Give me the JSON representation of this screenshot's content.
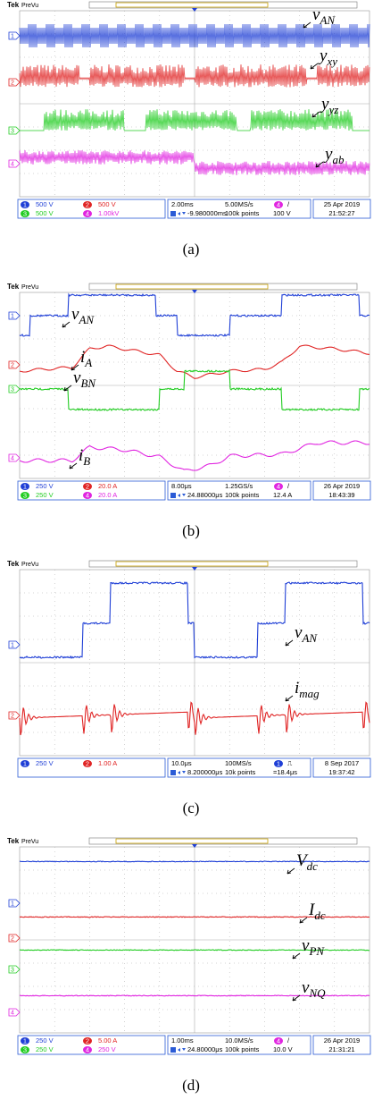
{
  "trace_colors": {
    "1": "#1f3fd6",
    "2": "#e02424",
    "3": "#22cc22",
    "4": "#e024e0"
  },
  "panels": [
    {
      "caption": "(a)",
      "header": {
        "brand": "Tek",
        "mode": "PreVu"
      },
      "labels": [
        {
          "base": "v",
          "sub": "AN"
        },
        {
          "base": "y",
          "sub": "xy"
        },
        {
          "base": "y",
          "sub": "yz"
        },
        {
          "base": "y",
          "sub": "ab"
        }
      ],
      "markers": [
        "1",
        "2",
        "3",
        "4"
      ],
      "status": {
        "channels": [
          {
            "num": "1",
            "scale": "500 V"
          },
          {
            "num": "2",
            "scale": "500 V"
          },
          {
            "num": "3",
            "scale": "500 V"
          },
          {
            "num": "4",
            "scale": "1.00kV"
          }
        ],
        "timebase": "2.00ms",
        "offset": "-9.980000ms",
        "sample_rate": "5.00MS/s",
        "record": "100k points",
        "trigger": {
          "channel": "4",
          "symbol": "/",
          "level": "100 V"
        },
        "date": "25 Apr 2019",
        "time": "21:52:27"
      }
    },
    {
      "caption": "(b)",
      "header": {
        "brand": "Tek",
        "mode": "PreVu"
      },
      "labels": [
        {
          "base": "v",
          "sub": "AN"
        },
        {
          "base": "i",
          "sub": "A"
        },
        {
          "base": "v",
          "sub": "BN"
        },
        {
          "base": "i",
          "sub": "B"
        }
      ],
      "markers": [
        "1",
        "2",
        "3",
        "4"
      ],
      "status": {
        "channels": [
          {
            "num": "1",
            "scale": "250 V"
          },
          {
            "num": "2",
            "scale": "20.0 A"
          },
          {
            "num": "3",
            "scale": "250 V"
          },
          {
            "num": "4",
            "scale": "20.0 A"
          }
        ],
        "timebase": "8.00μs",
        "offset": "24.88000μs",
        "sample_rate": "1.25GS/s",
        "record": "100k points",
        "trigger": {
          "channel": "4",
          "symbol": "/",
          "level": "12.4 A"
        },
        "date": "26 Apr 2019",
        "time": "18:43:39"
      }
    },
    {
      "caption": "(c)",
      "header": {
        "brand": "Tek",
        "mode": "PreVu"
      },
      "labels": [
        {
          "base": "v",
          "sub": "AN"
        },
        {
          "base": "i",
          "sub": "mag"
        }
      ],
      "markers": [
        "1",
        "2"
      ],
      "status": {
        "channels": [
          {
            "num": "1",
            "scale": "250 V"
          },
          {
            "num": "2",
            "scale": "1.00 A"
          }
        ],
        "timebase": "10.0μs",
        "offset": "8.200000μs",
        "sample_rate": "100MS/s",
        "record": "10k points",
        "trigger": {
          "channel": "1",
          "symbol": "⎍",
          "level": "=18.4μs"
        },
        "date": "8 Sep 2017",
        "time": "19:37:42"
      }
    },
    {
      "caption": "(d)",
      "header": {
        "brand": "Tek",
        "mode": "PreVu"
      },
      "labels": [
        {
          "base": "V",
          "sub": "dc"
        },
        {
          "base": "I",
          "sub": "dc"
        },
        {
          "base": "v",
          "sub": "PN"
        },
        {
          "base": "v",
          "sub": "NQ"
        }
      ],
      "markers": [
        "1",
        "2",
        "3",
        "4"
      ],
      "status": {
        "channels": [
          {
            "num": "1",
            "scale": "250 V"
          },
          {
            "num": "2",
            "scale": "5.00 A"
          },
          {
            "num": "3",
            "scale": "250 V"
          },
          {
            "num": "4",
            "scale": "250 V"
          }
        ],
        "timebase": "1.00ms",
        "offset": "24.80000μs",
        "sample_rate": "10.0MS/s",
        "record": "100k points",
        "trigger": {
          "channel": "4",
          "symbol": "/",
          "level": "10.0 V"
        },
        "date": "26 Apr 2019",
        "time": "21:31:21"
      }
    }
  ]
}
